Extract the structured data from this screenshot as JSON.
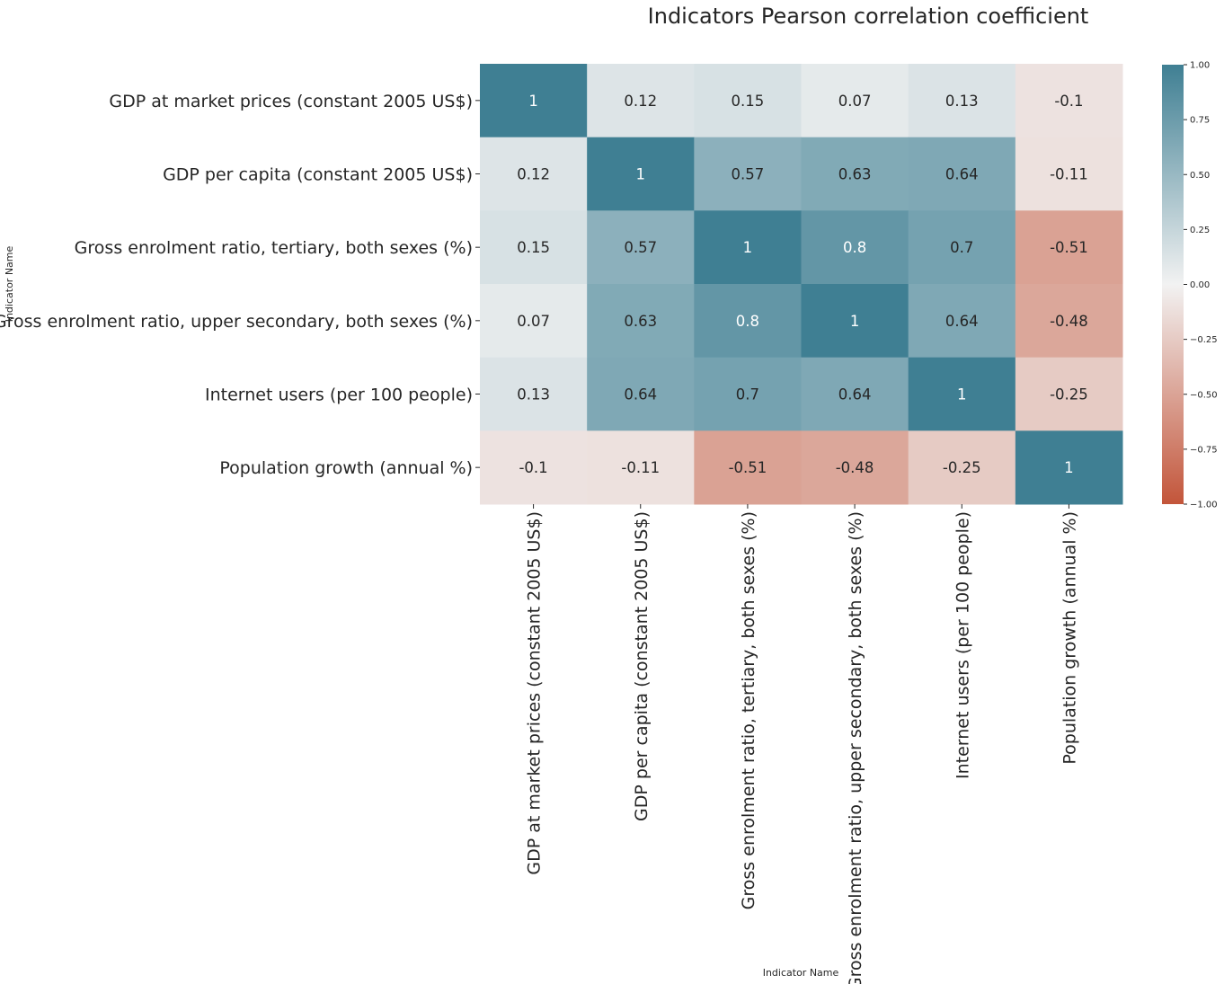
{
  "chart_data": {
    "type": "heatmap",
    "title": "Indicators Pearson correlation coefficient",
    "xlabel": "Indicator Name",
    "ylabel": "Indicator Name",
    "row_labels": [
      "GDP at market prices (constant 2005 US$)",
      "GDP per capita (constant 2005 US$)",
      "Gross enrolment ratio, tertiary, both sexes (%)",
      "Gross enrolment ratio, upper secondary, both sexes (%)",
      "Internet users (per 100 people)",
      "Population growth (annual %)"
    ],
    "col_labels": [
      "GDP at market prices (constant 2005 US$)",
      "GDP per capita (constant 2005 US$)",
      "Gross enrolment ratio, tertiary, both sexes (%)",
      "Gross enrolment ratio, upper secondary, both sexes (%)",
      "Internet users (per 100 people)",
      "Population growth (annual %)"
    ],
    "values": [
      [
        1,
        0.12,
        0.15,
        0.07,
        0.13,
        -0.1
      ],
      [
        0.12,
        1,
        0.57,
        0.63,
        0.64,
        -0.11
      ],
      [
        0.15,
        0.57,
        1,
        0.8,
        0.7,
        -0.51
      ],
      [
        0.07,
        0.63,
        0.8,
        1,
        0.64,
        -0.48
      ],
      [
        0.13,
        0.64,
        0.7,
        0.64,
        1,
        -0.25
      ],
      [
        -0.1,
        -0.11,
        -0.51,
        -0.48,
        -0.25,
        1
      ]
    ],
    "value_labels": [
      [
        "1",
        "0.12",
        "0.15",
        "0.07",
        "0.13",
        "-0.1"
      ],
      [
        "0.12",
        "1",
        "0.57",
        "0.63",
        "0.64",
        "-0.11"
      ],
      [
        "0.15",
        "0.57",
        "1",
        "0.8",
        "0.7",
        "-0.51"
      ],
      [
        "0.07",
        "0.63",
        "0.8",
        "1",
        "0.64",
        "-0.48"
      ],
      [
        "0.13",
        "0.64",
        "0.7",
        "0.64",
        "1",
        "-0.25"
      ],
      [
        "-0.1",
        "-0.11",
        "-0.51",
        "-0.48",
        "-0.25",
        "1"
      ]
    ],
    "color_range": [
      -1,
      1
    ],
    "colors": {
      "low": "#c3553a",
      "mid": "#f2f2f2",
      "high": "#3f7f93"
    },
    "colorbar_ticks": [
      "1.00",
      "0.75",
      "0.50",
      "0.25",
      "0.00",
      "−0.25",
      "−0.50",
      "−0.75",
      "−1.00"
    ],
    "grid": false
  }
}
